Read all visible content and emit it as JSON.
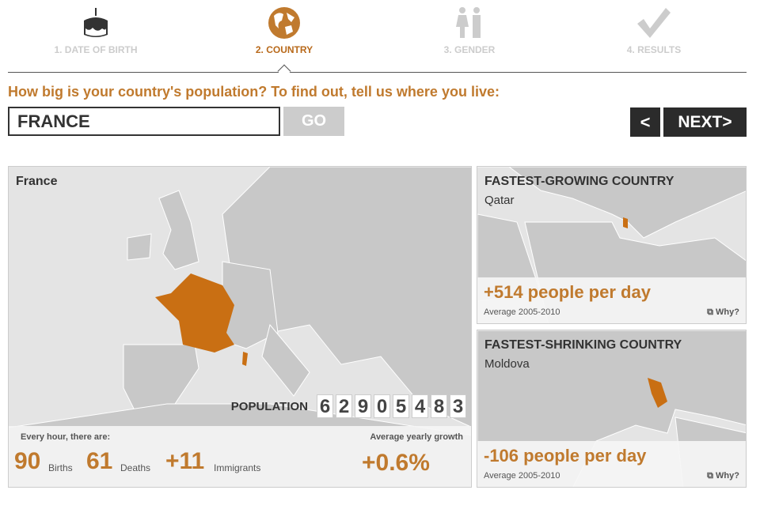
{
  "steps": [
    {
      "label": "1. DATE OF BIRTH",
      "icon": "cake-icon",
      "active": false
    },
    {
      "label": "2. COUNTRY",
      "icon": "globe-icon",
      "active": true
    },
    {
      "label": "3. GENDER",
      "icon": "gender-icon",
      "active": false
    },
    {
      "label": "4. RESULTS",
      "icon": "checkmark-icon",
      "active": false
    }
  ],
  "question": "How big is your country's population? To find out, tell us where you live:",
  "country_input": "FRANCE",
  "go_label": "GO",
  "prev_label": "<",
  "next_label": "NEXT>",
  "colors": {
    "accent": "#c07a2e",
    "map_land": "#c8c8c8",
    "dark_button": "#2b2b2b"
  },
  "main": {
    "country": "France",
    "population_label": "POPULATION",
    "population_digits": [
      "6",
      "2",
      "9",
      "0",
      "5",
      "4",
      "8",
      "3"
    ],
    "every_hour_label": "Every hour, there are:",
    "births": "90",
    "births_label": "Births",
    "deaths": "61",
    "deaths_label": "Deaths",
    "immigrants": "+11",
    "immigrants_label": "Immigrants",
    "growth_label": "Average yearly growth",
    "growth": "+0.6%"
  },
  "growing": {
    "title": "FASTEST-GROWING COUNTRY",
    "country": "Qatar",
    "value": "+514 people per day",
    "avg": "Average 2005-2010",
    "why": "Why?"
  },
  "shrinking": {
    "title": "FASTEST-SHRINKING COUNTRY",
    "country": "Moldova",
    "value": "-106 people per day",
    "avg": "Average 2005-2010",
    "why": "Why?"
  }
}
